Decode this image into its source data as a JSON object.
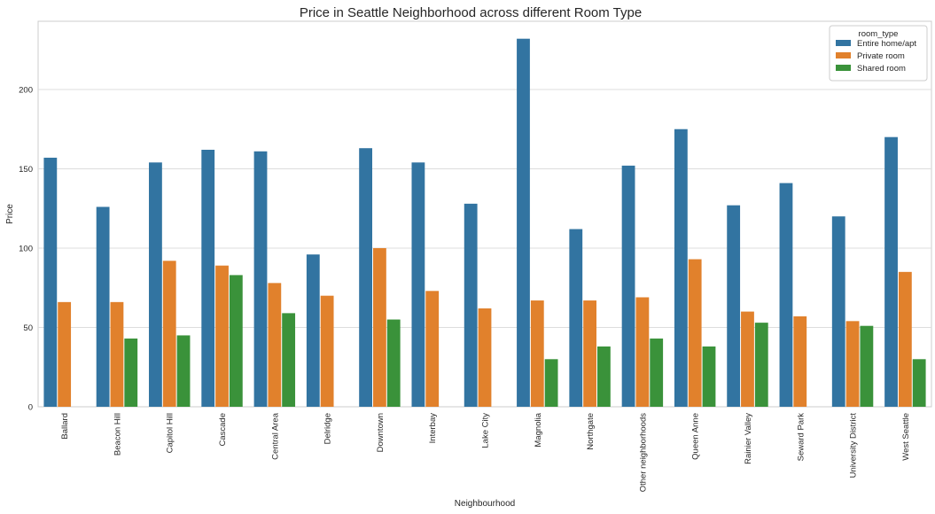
{
  "chart_data": {
    "type": "bar",
    "title": "Price in Seattle Neighborhood across different Room Type",
    "xlabel": "Neighbourhood",
    "ylabel": "Price",
    "ylim": [
      0,
      243
    ],
    "yticks": [
      0,
      50,
      100,
      150,
      200
    ],
    "grid": true,
    "legend": {
      "title": "room_type",
      "placement": "top-right"
    },
    "categories": [
      "Ballard",
      "Beacon Hill",
      "Capitol Hill",
      "Cascade",
      "Central Area",
      "Delridge",
      "Downtown",
      "Interbay",
      "Lake City",
      "Magnolia",
      "Northgate",
      "Other neighborhoods",
      "Queen Anne",
      "Rainier Valley",
      "Seward Park",
      "University District",
      "West Seattle"
    ],
    "series": [
      {
        "name": "Entire home/apt",
        "color": "#3274a1",
        "values": [
          157,
          126,
          154,
          162,
          161,
          96,
          163,
          154,
          128,
          232,
          112,
          152,
          175,
          127,
          141,
          120,
          170
        ]
      },
      {
        "name": "Private room",
        "color": "#e1812c",
        "values": [
          66,
          66,
          92,
          89,
          78,
          70,
          100,
          73,
          62,
          67,
          67,
          69,
          93,
          60,
          57,
          54,
          85
        ]
      },
      {
        "name": "Shared room",
        "color": "#3a923a",
        "values": [
          null,
          43,
          45,
          83,
          59,
          null,
          55,
          null,
          null,
          30,
          38,
          43,
          38,
          53,
          null,
          51,
          30
        ]
      }
    ]
  }
}
